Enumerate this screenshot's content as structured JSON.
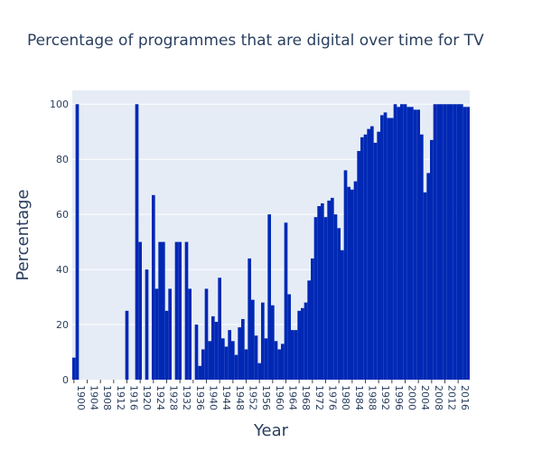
{
  "chart_data": {
    "type": "bar",
    "title": "Percentage of programmes that are digital over time for TV",
    "xlabel": "Year",
    "ylabel": "Percentage",
    "xlim": [
      1900,
      2019
    ],
    "ylim": [
      0,
      105
    ],
    "grid": true,
    "legend": "none",
    "bar_color": "#0028b4",
    "plot_bgcolor": "#e5ecf6",
    "yticks": [
      0,
      20,
      40,
      60,
      80,
      100
    ],
    "xticks": [
      1900,
      1904,
      1908,
      1912,
      1916,
      1920,
      1924,
      1928,
      1932,
      1936,
      1940,
      1944,
      1948,
      1952,
      1956,
      1960,
      1964,
      1968,
      1972,
      1976,
      1980,
      1984,
      1988,
      1992,
      1996,
      2000,
      2004,
      2008,
      2012,
      2016
    ],
    "x": [
      1900,
      1901,
      1902,
      1903,
      1904,
      1905,
      1906,
      1907,
      1908,
      1909,
      1910,
      1911,
      1912,
      1913,
      1914,
      1915,
      1916,
      1917,
      1918,
      1919,
      1920,
      1921,
      1922,
      1923,
      1924,
      1925,
      1926,
      1927,
      1928,
      1929,
      1930,
      1931,
      1932,
      1933,
      1934,
      1935,
      1936,
      1937,
      1938,
      1939,
      1940,
      1941,
      1942,
      1943,
      1944,
      1945,
      1946,
      1947,
      1948,
      1949,
      1950,
      1951,
      1952,
      1953,
      1954,
      1955,
      1956,
      1957,
      1958,
      1959,
      1960,
      1961,
      1962,
      1963,
      1964,
      1965,
      1966,
      1967,
      1968,
      1969,
      1970,
      1971,
      1972,
      1973,
      1974,
      1975,
      1976,
      1977,
      1978,
      1979,
      1980,
      1981,
      1982,
      1983,
      1984,
      1985,
      1986,
      1987,
      1988,
      1989,
      1990,
      1991,
      1992,
      1993,
      1994,
      1995,
      1996,
      1997,
      1998,
      1999,
      2000,
      2001,
      2002,
      2003,
      2004,
      2005,
      2006,
      2007,
      2008,
      2009,
      2010,
      2011,
      2012,
      2013,
      2014,
      2015,
      2016,
      2017,
      2018,
      2019
    ],
    "values": [
      8,
      100,
      0,
      0,
      0,
      0,
      0,
      0,
      0,
      0,
      0,
      0,
      0,
      0,
      0,
      0,
      25,
      0,
      0,
      100,
      50,
      0,
      40,
      0,
      67,
      33,
      50,
      50,
      25,
      33,
      0,
      50,
      50,
      0,
      50,
      33,
      0,
      20,
      5,
      11,
      33,
      14,
      23,
      21,
      37,
      15,
      12,
      18,
      14,
      9,
      19,
      22,
      11,
      44,
      29,
      16,
      6,
      28,
      15,
      60,
      27,
      14,
      11,
      13,
      57,
      31,
      18,
      18,
      25,
      26,
      28,
      36,
      44,
      59,
      63,
      64,
      59,
      65,
      66,
      60,
      55,
      47,
      76,
      70,
      69,
      72,
      83,
      88,
      89,
      91,
      92,
      86,
      90,
      96,
      97,
      95,
      95,
      100,
      99,
      100,
      100,
      99,
      99,
      98,
      98,
      89,
      68,
      75,
      87,
      100,
      100,
      100,
      100,
      100,
      100,
      100,
      100,
      100,
      99,
      99
    ]
  }
}
